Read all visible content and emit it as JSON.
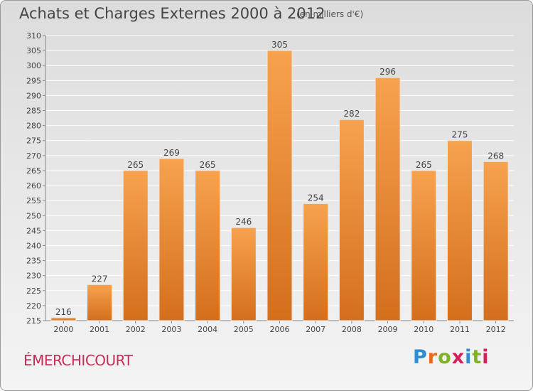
{
  "header": {
    "title": "Achats et Charges Externes 2000 à 2012",
    "subtitle": "(en milliers d'€)"
  },
  "footer": {
    "place": "ÉMERCHICOURT",
    "logo_text": "Proxiti",
    "logo_colors": [
      "#2c8fd6",
      "#e86a1a",
      "#7fb227",
      "#d81f5a",
      "#2c8fd6",
      "#7fb227",
      "#d81f5a"
    ]
  },
  "chart_data": {
    "type": "bar",
    "title": "Achats et Charges Externes 2000 à 2012",
    "subtitle": "(en milliers d'€)",
    "categories": [
      "2000",
      "2001",
      "2002",
      "2003",
      "2004",
      "2005",
      "2006",
      "2007",
      "2008",
      "2009",
      "2010",
      "2011",
      "2012"
    ],
    "values": [
      216,
      227,
      265,
      269,
      265,
      246,
      305,
      254,
      282,
      296,
      265,
      275,
      268
    ],
    "ylim": [
      215,
      310
    ],
    "ytick_step": 5,
    "grid": true,
    "bar_color_top": "#f7a24f",
    "bar_color_bottom": "#d46f1c",
    "grid_color": "#ffffff",
    "xlabel": "",
    "ylabel": ""
  }
}
